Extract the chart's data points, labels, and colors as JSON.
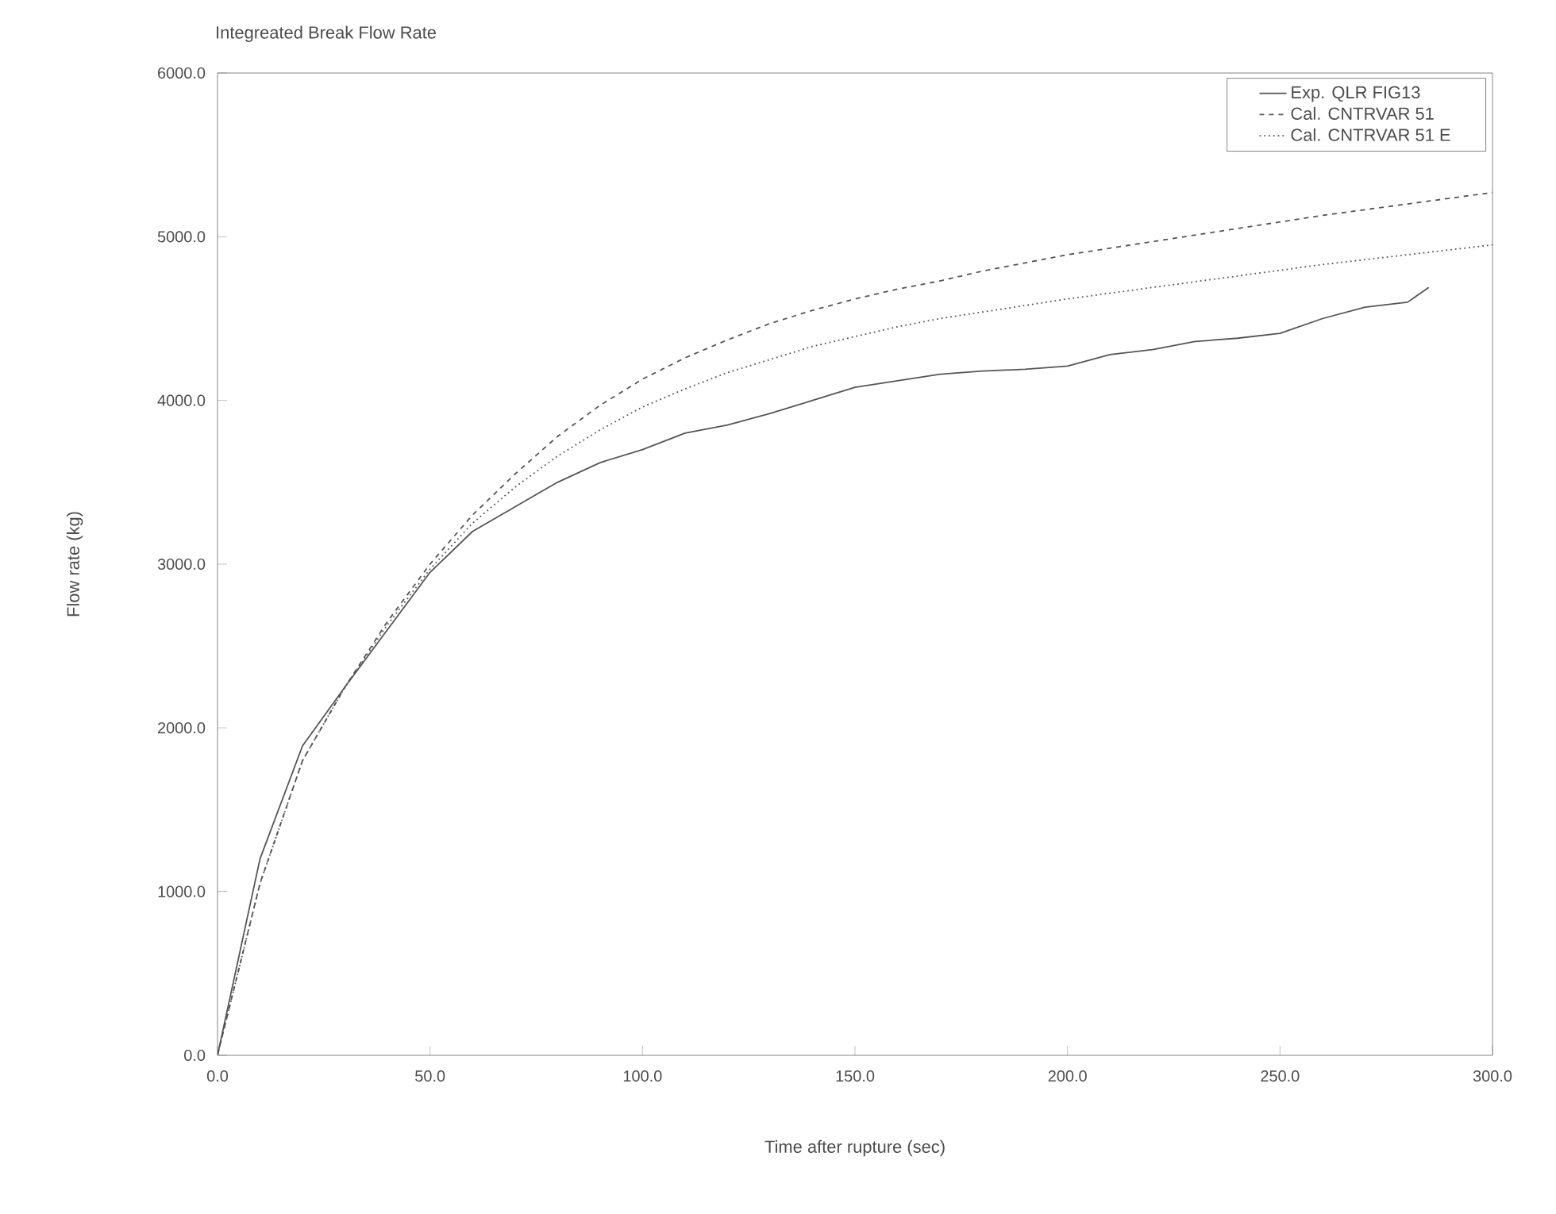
{
  "chart_data": {
    "type": "line",
    "title": "Integreated Break Flow Rate",
    "xlabel": "Time after rupture (sec)",
    "ylabel": "Flow rate (kg)",
    "xlim": [
      0,
      300
    ],
    "ylim": [
      0,
      6000
    ],
    "xticks": [
      {
        "value": 0,
        "label": "0.0"
      },
      {
        "value": 50,
        "label": "50.0"
      },
      {
        "value": 100,
        "label": "100.0"
      },
      {
        "value": 150,
        "label": "150.0"
      },
      {
        "value": 200,
        "label": "200.0"
      },
      {
        "value": 250,
        "label": "250.0"
      },
      {
        "value": 300,
        "label": "300.0"
      }
    ],
    "yticks": [
      {
        "value": 0,
        "label": "0.0"
      },
      {
        "value": 1000,
        "label": "1000.0"
      },
      {
        "value": 2000,
        "label": "2000.0"
      },
      {
        "value": 3000,
        "label": "3000.0"
      },
      {
        "value": 4000,
        "label": "4000.0"
      },
      {
        "value": 5000,
        "label": "5000.0"
      },
      {
        "value": 6000,
        "label": "6000.0"
      }
    ],
    "legend": "top right",
    "grid": false,
    "marker": "none",
    "series": [
      {
        "name": "Exp. QLR FIG13",
        "color": "#555555",
        "line_style": "solid",
        "x": [
          0,
          10,
          20,
          30,
          40,
          50,
          60,
          70,
          80,
          90,
          100,
          110,
          120,
          130,
          140,
          150,
          160,
          170,
          180,
          190,
          200,
          210,
          220,
          230,
          240,
          250,
          260,
          270,
          280,
          285
        ],
        "values": [
          0,
          1200,
          1890,
          2250,
          2600,
          2950,
          3200,
          3350,
          3500,
          3620,
          3700,
          3800,
          3850,
          3920,
          4000,
          4080,
          4120,
          4160,
          4180,
          4190,
          4210,
          4280,
          4310,
          4360,
          4380,
          4410,
          4500,
          4570,
          4600,
          4690
        ]
      },
      {
        "name": "Cal. CNTRVAR 51",
        "color": "#555555",
        "line_style": "dashed",
        "x": [
          0,
          10,
          20,
          30,
          40,
          50,
          60,
          70,
          80,
          90,
          100,
          110,
          120,
          130,
          140,
          150,
          160,
          170,
          180,
          190,
          200,
          220,
          240,
          260,
          280,
          300
        ],
        "values": [
          0,
          1050,
          1800,
          2250,
          2650,
          3000,
          3300,
          3550,
          3780,
          3970,
          4130,
          4260,
          4370,
          4470,
          4550,
          4620,
          4680,
          4730,
          4790,
          4840,
          4890,
          4970,
          5050,
          5130,
          5200,
          5270
        ]
      },
      {
        "name": "Cal. CNTRVAR 51 E",
        "color": "#555555",
        "line_style": "dotted",
        "x": [
          0,
          10,
          20,
          30,
          40,
          50,
          60,
          70,
          80,
          90,
          100,
          110,
          120,
          130,
          140,
          150,
          160,
          170,
          180,
          190,
          200,
          220,
          240,
          260,
          280,
          300
        ],
        "values": [
          0,
          1050,
          1800,
          2250,
          2630,
          2970,
          3250,
          3470,
          3660,
          3820,
          3960,
          4070,
          4170,
          4250,
          4330,
          4390,
          4450,
          4500,
          4540,
          4580,
          4620,
          4690,
          4760,
          4830,
          4890,
          4950
        ]
      }
    ]
  }
}
